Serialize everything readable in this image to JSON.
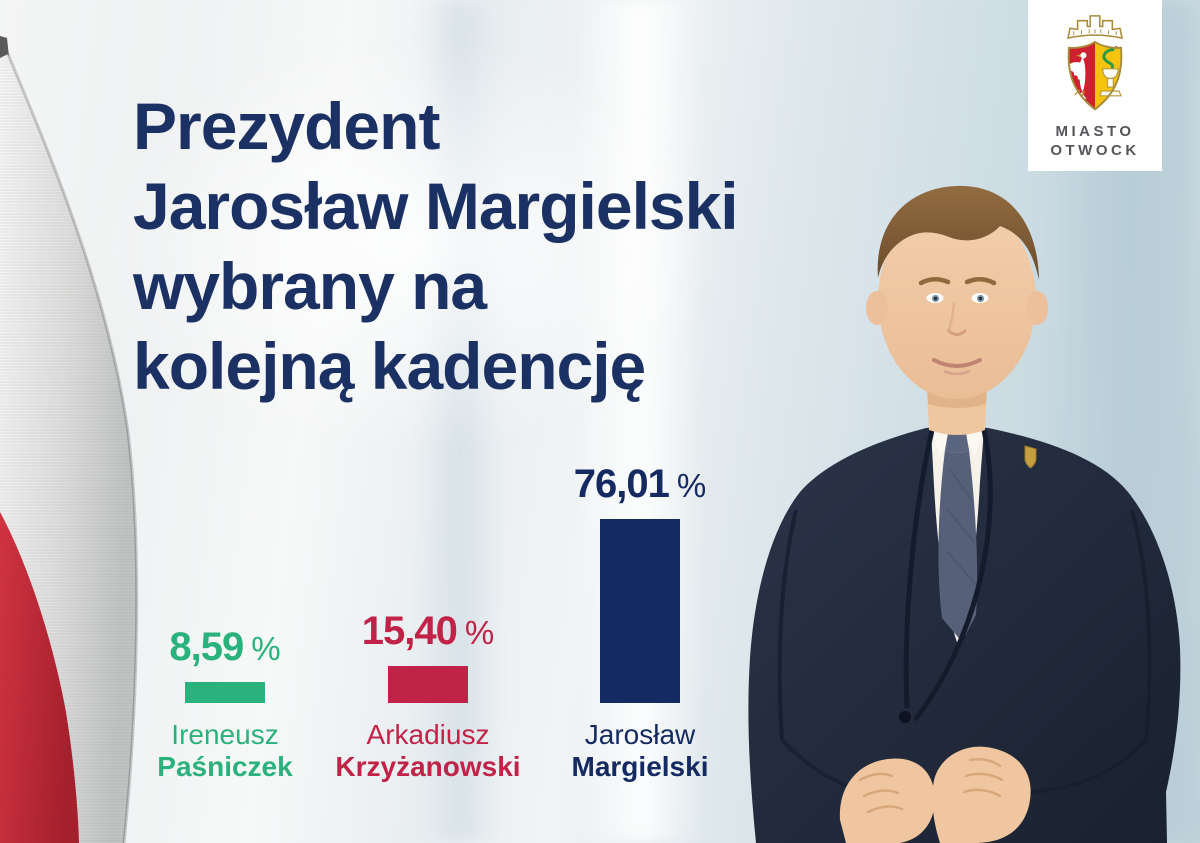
{
  "poster": {
    "headline_lines": [
      "Prezydent",
      "Jarosław Margielski",
      "wybrany na",
      "kolejną kadencję"
    ],
    "headline_color": "#1b3163"
  },
  "crest_card": {
    "city_name_line1": "MIASTO",
    "city_name_line2": "OTWOCK",
    "shield_left_color": "#d01f2e",
    "shield_right_color": "#f6c40e",
    "shield_outline_gold": "#a88c3a",
    "snake_green": "#2f9643"
  },
  "flag_colors": {
    "white": "#e9e9e9",
    "red": "#c62a38"
  },
  "chart_data": {
    "type": "bar",
    "title": "",
    "unit": "%",
    "categories": [
      "Ireneusz Paśniczek",
      "Arkadiusz Krzyżanowski",
      "Jarosław Margielski"
    ],
    "values": [
      8.59,
      15.4,
      76.01
    ],
    "value_labels": [
      "8,59",
      "15,40",
      "76,01"
    ],
    "bar_colors": [
      "#2bb27c",
      "#c02347",
      "#142a61"
    ],
    "ylim": [
      0,
      100
    ],
    "grid": false,
    "legend": false,
    "candidates": [
      {
        "first_name": "Ireneusz",
        "last_name": "Paśniczek",
        "value": 8.59,
        "value_display": "8,59",
        "percent_sign": "%",
        "color": "#2bb27c"
      },
      {
        "first_name": "Arkadiusz",
        "last_name": "Krzyżanowski",
        "value": 15.4,
        "value_display": "15,40",
        "percent_sign": "%",
        "color": "#c02347"
      },
      {
        "first_name": "Jarosław",
        "last_name": "Margielski",
        "value": 76.01,
        "value_display": "76,01",
        "percent_sign": "%",
        "color": "#142a61"
      }
    ]
  }
}
